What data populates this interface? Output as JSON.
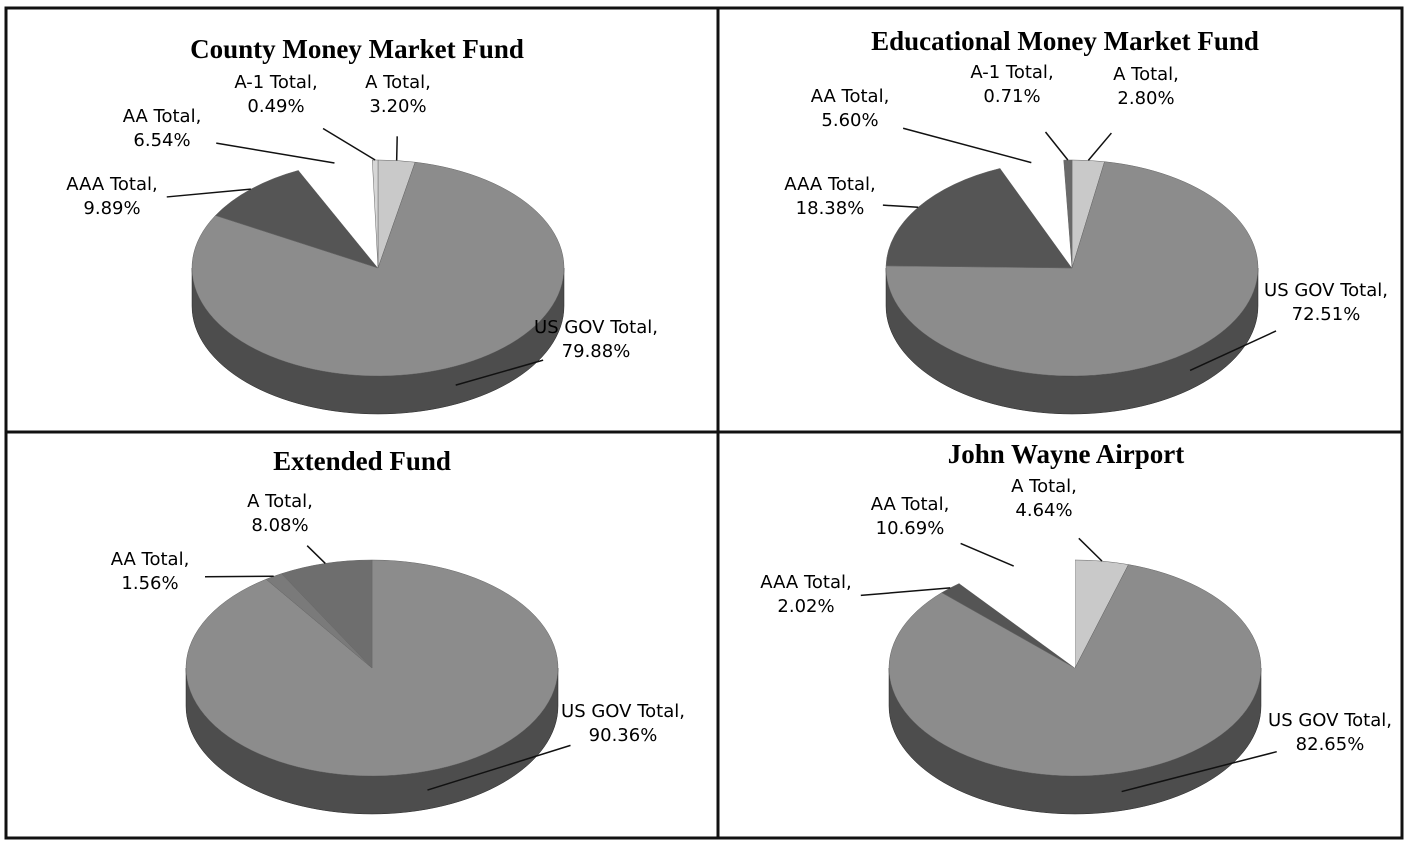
{
  "chart_data": [
    {
      "type": "pie",
      "title": "County Money Market Fund",
      "categories": [
        "A Total,",
        "US GOV Total,",
        "AAA Total,",
        "AA Total,",
        "A-1 Total,"
      ],
      "values": [
        3.2,
        79.88,
        9.89,
        6.54,
        0.49
      ],
      "value_labels": [
        "3.20%",
        "79.88%",
        "9.89%",
        "6.54%",
        "0.49%"
      ],
      "colors": [
        "#c9c9c9",
        "#8c8c8c",
        "#555555",
        "#ffffff",
        "#d6d6d6"
      ]
    },
    {
      "type": "pie",
      "title": "Educational Money Market Fund",
      "categories": [
        "A Total,",
        "US GOV Total,",
        "AAA Total,",
        "AA Total,",
        "A-1 Total,"
      ],
      "values": [
        2.8,
        72.51,
        18.38,
        5.6,
        0.71
      ],
      "value_labels": [
        "2.80%",
        "72.51%",
        "18.38%",
        "5.60%",
        "0.71%"
      ],
      "colors": [
        "#c9c9c9",
        "#8c8c8c",
        "#555555",
        "#ffffff",
        "#6a6a6a"
      ]
    },
    {
      "type": "pie",
      "title": "Extended Fund",
      "categories": [
        "US GOV Total,",
        "AA Total,",
        "A Total,"
      ],
      "values": [
        90.36,
        1.56,
        8.08
      ],
      "value_labels": [
        "90.36%",
        "1.56%",
        "8.08%"
      ],
      "colors": [
        "#8c8c8c",
        "#7a7a7a",
        "#6e6e6e"
      ]
    },
    {
      "type": "pie",
      "title": "John Wayne Airport",
      "categories": [
        "A Total,",
        "US GOV Total,",
        "AAA Total,",
        "AA Total,"
      ],
      "values": [
        4.64,
        82.65,
        2.02,
        10.69
      ],
      "value_labels": [
        "4.64%",
        "82.65%",
        "2.02%",
        "10.69%"
      ],
      "colors": [
        "#c9c9c9",
        "#8c8c8c",
        "#555555",
        "#ffffff"
      ]
    }
  ]
}
